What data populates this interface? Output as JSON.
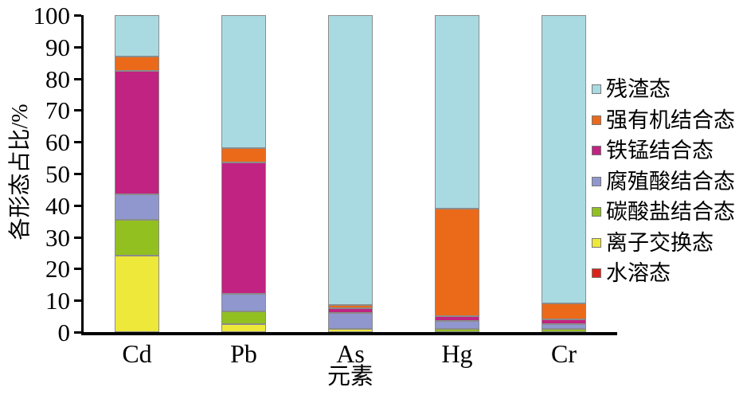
{
  "chart_data": {
    "type": "bar",
    "stacked": true,
    "percent_stacked": true,
    "title": "",
    "xlabel": "元素",
    "ylabel": "各形态占比/%",
    "ylim": [
      0,
      100
    ],
    "yticks": [
      0,
      10,
      20,
      30,
      40,
      50,
      60,
      70,
      80,
      90,
      100
    ],
    "grid": false,
    "categories": [
      "Cd",
      "Pb",
      "As",
      "Hg",
      "Cr"
    ],
    "series": [
      {
        "name": "水溶态",
        "color": "#dc231a",
        "values": [
          0,
          0,
          0,
          0,
          0
        ]
      },
      {
        "name": "离子交换态",
        "color": "#eee83b",
        "values": [
          24,
          2.5,
          1,
          0,
          0
        ]
      },
      {
        "name": "碳酸盐结合态",
        "color": "#92c021",
        "values": [
          11.5,
          4,
          0,
          1,
          1
        ]
      },
      {
        "name": "腐殖酸结合态",
        "color": "#9097ce",
        "values": [
          8,
          5.5,
          5,
          2.5,
          1.5
        ]
      },
      {
        "name": "铁锰结合态",
        "color": "#c02381",
        "values": [
          39,
          41.5,
          1.5,
          1.5,
          1.5
        ]
      },
      {
        "name": "强有机结合态",
        "color": "#eb6a19",
        "values": [
          4.5,
          4.5,
          1,
          34,
          5
        ]
      },
      {
        "name": "残渣态",
        "color": "#a9dae2",
        "values": [
          13,
          42,
          91.5,
          61,
          91
        ]
      }
    ],
    "legend": {
      "position": "right",
      "order_top_to_bottom": [
        "残渣态",
        "强有机结合态",
        "铁锰结合态",
        "腐殖酸结合态",
        "碳酸盐结合态",
        "离子交换态",
        "水溶态"
      ]
    },
    "axis_color": "#000000",
    "bar_border_color": "#8b8b8b"
  }
}
